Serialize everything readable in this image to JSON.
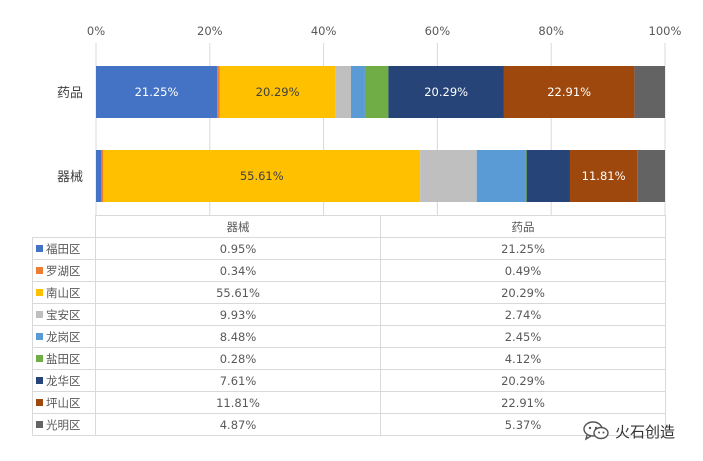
{
  "chart_data": {
    "type": "bar",
    "orientation": "horizontal",
    "stacked": "percent",
    "categories": [
      "药品",
      "器械"
    ],
    "x_ticks": [
      "0%",
      "20%",
      "40%",
      "60%",
      "80%",
      "100%"
    ],
    "xlim": [
      0,
      100
    ],
    "gridlines": true,
    "series": [
      {
        "name": "福田区",
        "color": "#4472C4",
        "values": [
          21.25,
          0.95
        ],
        "labels": [
          "21.25%",
          "0.95%"
        ]
      },
      {
        "name": "罗湖区",
        "color": "#ED7D31",
        "values": [
          0.49,
          0.34
        ],
        "labels": [
          "0.49%",
          "0.34%"
        ]
      },
      {
        "name": "南山区",
        "color": "#FFC000",
        "values": [
          20.29,
          55.61
        ],
        "labels": [
          "20.29%",
          "55.61%"
        ]
      },
      {
        "name": "宝安区",
        "color": "#BFBFBF",
        "values": [
          2.74,
          9.93
        ],
        "labels": [
          "2.74%",
          "9.93%"
        ]
      },
      {
        "name": "龙岗区",
        "color": "#5B9BD5",
        "values": [
          2.45,
          8.48
        ],
        "labels": [
          "2.45%",
          "8.48%"
        ]
      },
      {
        "name": "盐田区",
        "color": "#70AD47",
        "values": [
          4.12,
          0.28
        ],
        "labels": [
          "4.12%",
          "0.28%"
        ]
      },
      {
        "name": "龙华区",
        "color": "#264478",
        "values": [
          20.29,
          7.61
        ],
        "labels": [
          "20.29%",
          "7.61%"
        ]
      },
      {
        "name": "坪山区",
        "color": "#9E480E",
        "values": [
          22.91,
          11.81
        ],
        "labels": [
          "22.91%",
          "11.81%"
        ]
      },
      {
        "name": "光明区",
        "color": "#636363",
        "values": [
          5.37,
          4.87
        ],
        "labels": [
          "5.37%",
          "4.87%"
        ]
      }
    ],
    "bar_data_labels": {
      "药品": [
        "21.25%",
        "20.29%",
        "20.29%",
        "22.91%"
      ],
      "器械": [
        "55.61%",
        "11.81%"
      ]
    },
    "bar_label_series": {
      "药品": [
        0,
        2,
        6,
        7
      ],
      "器械": [
        2,
        7
      ]
    },
    "table_columns": [
      "器械",
      "药品"
    ],
    "legend_position": "table"
  },
  "watermark": {
    "icon": "wechat-icon",
    "text": "火石创造"
  }
}
